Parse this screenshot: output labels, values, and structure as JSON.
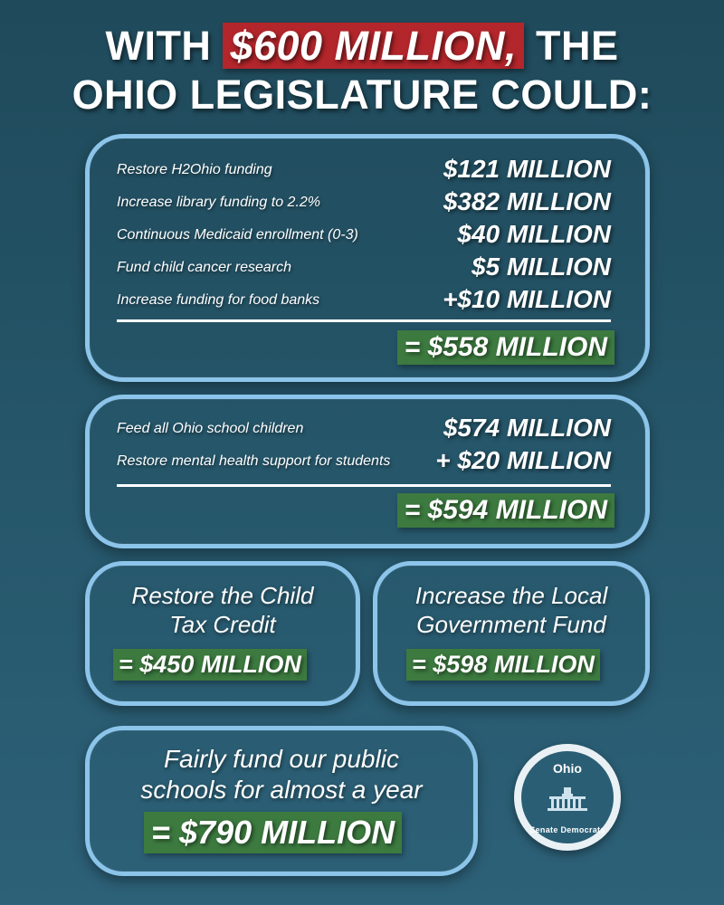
{
  "header": {
    "line1_prefix": "WITH ",
    "line1_highlight": "$600 MILLION,",
    "line1_suffix": " THE",
    "line2": "OHIO LEGISLATURE COULD:"
  },
  "box1": {
    "items": [
      {
        "label": "Restore H2Ohio funding",
        "amount": "$121 MILLION"
      },
      {
        "label": "Increase library funding to 2.2%",
        "amount": "$382 MILLION"
      },
      {
        "label": "Continuous Medicaid enrollment (0-3)",
        "amount": "$40 MILLION"
      },
      {
        "label": "Fund child cancer research",
        "amount": "$5 MILLION"
      },
      {
        "label": "Increase funding for food banks",
        "amount": "+$10 MILLION"
      }
    ],
    "total": "= $558 MILLION"
  },
  "box2": {
    "items": [
      {
        "label": "Feed all Ohio school children",
        "amount": "$574 MILLION"
      },
      {
        "label": "Restore mental health support for students",
        "amount": "+ $20 MILLION"
      }
    ],
    "total": "= $594 MILLION"
  },
  "box3": {
    "line1": "Restore the Child",
    "line2": "Tax Credit",
    "total": "= $450 MILLION"
  },
  "box4": {
    "line1": "Increase the Local",
    "line2": "Government Fund",
    "total": "= $598 MILLION"
  },
  "box5": {
    "line1": "Fairly fund our public",
    "line2": "schools for almost a year",
    "total": "= $790 MILLION"
  },
  "logo": {
    "top_text": "Ohio",
    "bottom_text": "Senate Democrats"
  },
  "colors": {
    "highlight_red": "#b3262b",
    "total_green": "#3c7a3f",
    "box_border": "#8cc4ea",
    "background": "#26576b"
  }
}
